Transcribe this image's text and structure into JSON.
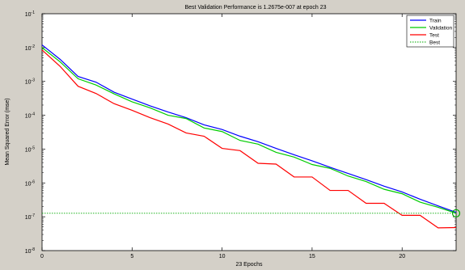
{
  "chart_data": {
    "type": "line",
    "title": "Best Validation Performance is 1.2675e-007 at epoch 23",
    "xlabel": "23 Epochs",
    "ylabel": "Mean Squared Error  (mse)",
    "xlim": [
      0,
      23
    ],
    "ylim": [
      1e-08,
      0.1
    ],
    "yscale": "log",
    "xticks": [
      0,
      5,
      10,
      15,
      20
    ],
    "yticks": [
      {
        "value": 0.1,
        "base": "10",
        "exp": "-1"
      },
      {
        "value": 0.01,
        "base": "10",
        "exp": "-2"
      },
      {
        "value": 0.001,
        "base": "10",
        "exp": "-3"
      },
      {
        "value": 0.0001,
        "base": "10",
        "exp": "-4"
      },
      {
        "value": 1e-05,
        "base": "10",
        "exp": "-5"
      },
      {
        "value": 1e-06,
        "base": "10",
        "exp": "-6"
      },
      {
        "value": 1e-07,
        "base": "10",
        "exp": "-7"
      },
      {
        "value": 1e-08,
        "base": "10",
        "exp": "-8"
      }
    ],
    "grid": false,
    "legend_position": "top-right",
    "x": [
      0,
      1,
      2,
      3,
      4,
      5,
      6,
      7,
      8,
      9,
      10,
      11,
      12,
      13,
      14,
      15,
      16,
      17,
      18,
      19,
      20,
      21,
      22,
      23
    ],
    "series": [
      {
        "name": "Train",
        "color": "#0000ff",
        "style": "solid",
        "values": [
          0.012,
          0.0045,
          0.0014,
          0.00095,
          0.00048,
          0.0003,
          0.00019,
          0.000125,
          8.5e-05,
          5.2e-05,
          3.8e-05,
          2.4e-05,
          1.65e-05,
          1.05e-05,
          6.8e-06,
          4.5e-06,
          2.9e-06,
          1.9e-06,
          1.25e-06,
          8e-07,
          5.4e-07,
          3.3e-07,
          2.1e-07,
          1.35e-07
        ]
      },
      {
        "name": "Validation",
        "color": "#00cc00",
        "style": "solid",
        "values": [
          0.01,
          0.0038,
          0.0012,
          0.00078,
          0.00043,
          0.00025,
          0.000165,
          0.0001,
          8e-05,
          4.2e-05,
          3.3e-05,
          1.8e-05,
          1.4e-05,
          8e-06,
          5.8e-06,
          3.5e-06,
          2.7e-06,
          1.6e-06,
          1.1e-06,
          6.5e-07,
          4.8e-07,
          2.7e-07,
          1.9e-07,
          1.27e-07
        ]
      },
      {
        "name": "Test",
        "color": "#ff0000",
        "style": "solid",
        "values": [
          0.0085,
          0.0028,
          0.00072,
          0.00044,
          0.00022,
          0.00014,
          8.5e-05,
          5.5e-05,
          3e-05,
          2.4e-05,
          1.05e-05,
          9e-06,
          3.8e-06,
          3.6e-06,
          1.5e-06,
          1.5e-06,
          6e-07,
          6e-07,
          2.5e-07,
          2.5e-07,
          1.1e-07,
          1.1e-07,
          4.7e-08,
          4.8e-08
        ]
      },
      {
        "name": "Best",
        "color": "#00aa00",
        "style": "dotted",
        "values": [
          1.2675e-07,
          1.2675e-07,
          1.2675e-07,
          1.2675e-07,
          1.2675e-07,
          1.2675e-07,
          1.2675e-07,
          1.2675e-07,
          1.2675e-07,
          1.2675e-07,
          1.2675e-07,
          1.2675e-07,
          1.2675e-07,
          1.2675e-07,
          1.2675e-07,
          1.2675e-07,
          1.2675e-07,
          1.2675e-07,
          1.2675e-07,
          1.2675e-07,
          1.2675e-07,
          1.2675e-07,
          1.2675e-07,
          1.2675e-07
        ]
      }
    ],
    "best_point": {
      "x": 23,
      "y": 1.2675e-07,
      "color": "#00aa00"
    }
  }
}
